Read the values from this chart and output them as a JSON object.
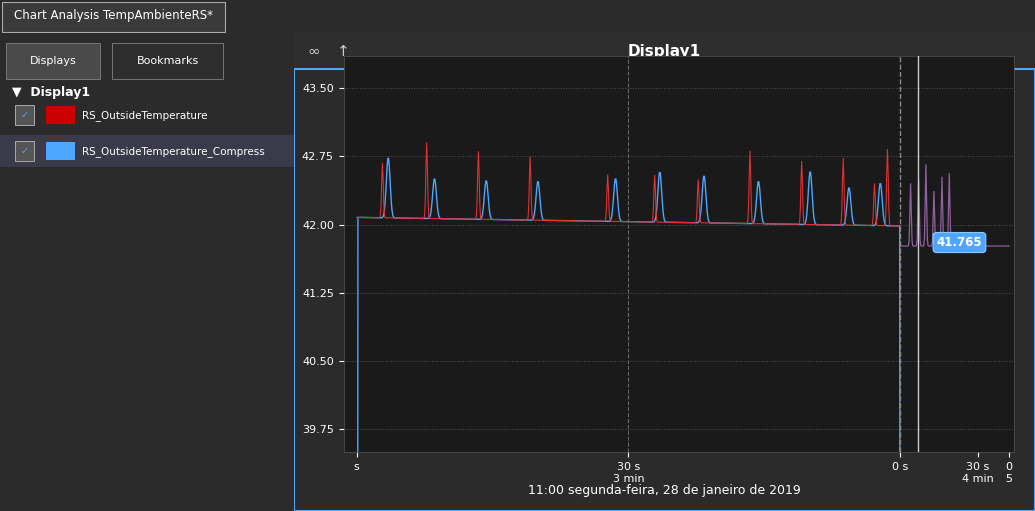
{
  "title": "Chart Analysis TempAmbienteRS*",
  "display_title": "Display1",
  "subtitle": "11:00 segunda-feira, 28 de janeiro de 2019",
  "bg_color": "#2b2b2b",
  "sidebar_bg": "#252525",
  "plot_bg": "#1a1a1a",
  "toolbar_bg": "#2e2e2e",
  "text_color": "#ffffff",
  "grid_color": "#555555",
  "ylim": [
    39.5,
    43.85
  ],
  "yticks": [
    39.75,
    40.5,
    41.25,
    42.0,
    42.75,
    43.5
  ],
  "series1_color": "#e03030",
  "series2_color": "#4da6ff",
  "series3_color": "#9060a0",
  "annotation_value": "41.765",
  "annotation_color": "#4da6ff",
  "sidebar_items": [
    "RS_OutsideTemperature",
    "RS_OutsideTemperature_Compress"
  ],
  "sidebar_colors": [
    "#cc0000",
    "#4da6ff"
  ],
  "tab_labels": [
    "Displays",
    "Bookmarks"
  ],
  "border_color": "#4da6ff"
}
